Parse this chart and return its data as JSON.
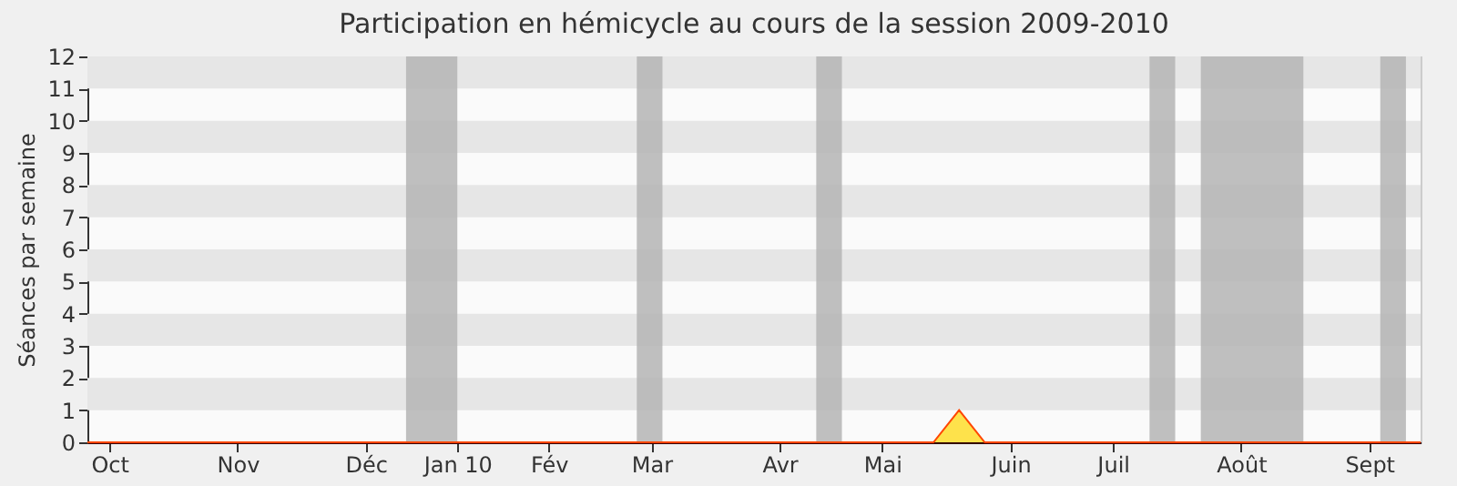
{
  "chart_data": {
    "type": "area",
    "title": "Participation en hémicycle au cours de la session 2009-2010",
    "ylabel": "Séances par semaine",
    "x": [
      "2009-09-28",
      "2009-10-05",
      "2009-10-12",
      "2009-10-19",
      "2009-10-26",
      "2009-11-02",
      "2009-11-09",
      "2009-11-16",
      "2009-11-23",
      "2009-11-30",
      "2009-12-07",
      "2009-12-14",
      "2009-12-21",
      "2009-12-28",
      "2010-01-04",
      "2010-01-11",
      "2010-01-18",
      "2010-01-25",
      "2010-02-01",
      "2010-02-08",
      "2010-02-15",
      "2010-02-22",
      "2010-03-01",
      "2010-03-08",
      "2010-03-15",
      "2010-03-22",
      "2010-03-29",
      "2010-04-05",
      "2010-04-12",
      "2010-04-19",
      "2010-04-26",
      "2010-05-03",
      "2010-05-10",
      "2010-05-17",
      "2010-05-24",
      "2010-05-31",
      "2010-06-07",
      "2010-06-14",
      "2010-06-21",
      "2010-06-28",
      "2010-07-05",
      "2010-07-12",
      "2010-07-19",
      "2010-07-26",
      "2010-08-02",
      "2010-08-09",
      "2010-08-16",
      "2010-08-23",
      "2010-08-30",
      "2010-09-06",
      "2010-09-13",
      "2010-09-20",
      "2010-09-27"
    ],
    "series": [
      {
        "color": "#ffd700",
        "values": [
          0,
          0,
          0,
          0,
          0,
          0,
          0,
          0,
          0,
          0,
          0,
          0,
          0,
          0,
          0,
          0,
          0,
          0,
          0,
          0,
          0,
          0,
          0,
          0,
          0,
          0,
          0,
          0,
          0,
          0,
          0,
          0,
          0,
          0,
          1,
          0,
          0,
          0,
          0,
          0,
          0,
          0,
          0,
          0,
          0,
          0,
          0,
          0,
          0,
          0,
          0,
          0,
          0
        ]
      }
    ],
    "xlim": [
      "2009-09-28",
      "2010-09-27"
    ],
    "xticks": [
      {
        "value": "2009-10-04",
        "label": "Oct"
      },
      {
        "value": "2009-11-08",
        "label": "Nov"
      },
      {
        "value": "2009-12-13",
        "label": "Déc"
      },
      {
        "value": "2010-01-07",
        "label": "Jan 10"
      },
      {
        "value": "2010-02-01",
        "label": "Fév"
      },
      {
        "value": "2010-03-01",
        "label": "Mar"
      },
      {
        "value": "2010-04-05",
        "label": "Avr"
      },
      {
        "value": "2010-05-03",
        "label": "Mai"
      },
      {
        "value": "2010-06-07",
        "label": "Juin"
      },
      {
        "value": "2010-07-05",
        "label": "Juil"
      },
      {
        "value": "2010-08-09",
        "label": "Août"
      },
      {
        "value": "2010-09-13",
        "label": "Sept"
      }
    ],
    "ylim": [
      0,
      12
    ],
    "yticks": [
      0,
      1,
      2,
      3,
      4,
      5,
      6,
      7,
      8,
      9,
      10,
      11,
      12
    ],
    "grid": false,
    "bands": [
      {
        "axis": "y",
        "from": 1,
        "to": 2,
        "color": "#e6e6e6"
      },
      {
        "axis": "y",
        "from": 3,
        "to": 4,
        "color": "#e6e6e6"
      },
      {
        "axis": "y",
        "from": 5,
        "to": 6,
        "color": "#e6e6e6"
      },
      {
        "axis": "y",
        "from": 7,
        "to": 8,
        "color": "#e6e6e6"
      },
      {
        "axis": "y",
        "from": 9,
        "to": 10,
        "color": "#e6e6e6"
      },
      {
        "axis": "y",
        "from": 11,
        "to": 12,
        "color": "#e6e6e6"
      },
      {
        "axis": "x",
        "from": "2009-12-24",
        "to": "2010-01-07",
        "color": "#b4b4b4"
      },
      {
        "axis": "x",
        "from": "2010-02-25",
        "to": "2010-03-04",
        "color": "#b4b4b4"
      },
      {
        "axis": "x",
        "from": "2010-04-15",
        "to": "2010-04-22",
        "color": "#b4b4b4"
      },
      {
        "axis": "x",
        "from": "2010-07-15",
        "to": "2010-07-22",
        "color": "#b4b4b4"
      },
      {
        "axis": "x",
        "from": "2010-07-29",
        "to": "2010-08-26",
        "color": "#b4b4b4"
      },
      {
        "axis": "x",
        "from": "2010-09-16",
        "to": "2010-09-23",
        "color": "#b4b4b4"
      }
    ]
  }
}
